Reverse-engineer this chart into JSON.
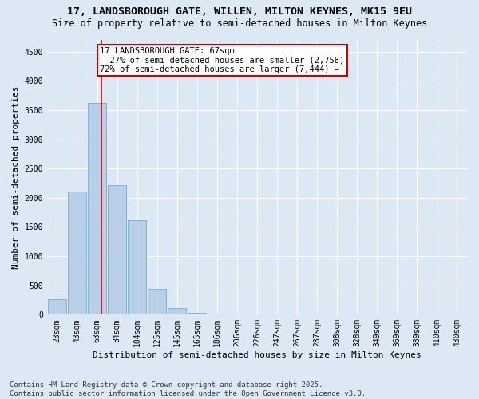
{
  "title_line1": "17, LANDSBOROUGH GATE, WILLEN, MILTON KEYNES, MK15 9EU",
  "title_line2": "Size of property relative to semi-detached houses in Milton Keynes",
  "xlabel": "Distribution of semi-detached houses by size in Milton Keynes",
  "ylabel": "Number of semi-detached properties",
  "categories": [
    "23sqm",
    "43sqm",
    "63sqm",
    "84sqm",
    "104sqm",
    "125sqm",
    "145sqm",
    "165sqm",
    "186sqm",
    "206sqm",
    "226sqm",
    "247sqm",
    "267sqm",
    "287sqm",
    "308sqm",
    "328sqm",
    "349sqm",
    "369sqm",
    "389sqm",
    "410sqm",
    "430sqm"
  ],
  "values": [
    260,
    2100,
    3620,
    2220,
    1620,
    440,
    110,
    30,
    0,
    0,
    0,
    0,
    0,
    0,
    0,
    0,
    0,
    0,
    0,
    0,
    0
  ],
  "bar_color": "#b8cfe8",
  "bar_edge_color": "#7aaad0",
  "vline_color": "#cc0000",
  "vline_x": 2.2,
  "annotation_text": "17 LANDSBOROUGH GATE: 67sqm\n← 27% of semi-detached houses are smaller (2,758)\n72% of semi-detached houses are larger (7,444) →",
  "annotation_box_color": "#ffffff",
  "annotation_box_edge": "#cc0000",
  "ylim": [
    0,
    4700
  ],
  "yticks": [
    0,
    500,
    1000,
    1500,
    2000,
    2500,
    3000,
    3500,
    4000,
    4500
  ],
  "bg_color": "#dce8f4",
  "plot_bg_color": "#dce8f4",
  "footer_text": "Contains HM Land Registry data © Crown copyright and database right 2025.\nContains public sector information licensed under the Open Government Licence v3.0.",
  "title_fontsize": 9.5,
  "subtitle_fontsize": 8.5,
  "xlabel_fontsize": 8,
  "ylabel_fontsize": 8,
  "tick_fontsize": 7,
  "annotation_fontsize": 7.5,
  "footer_fontsize": 6.5
}
